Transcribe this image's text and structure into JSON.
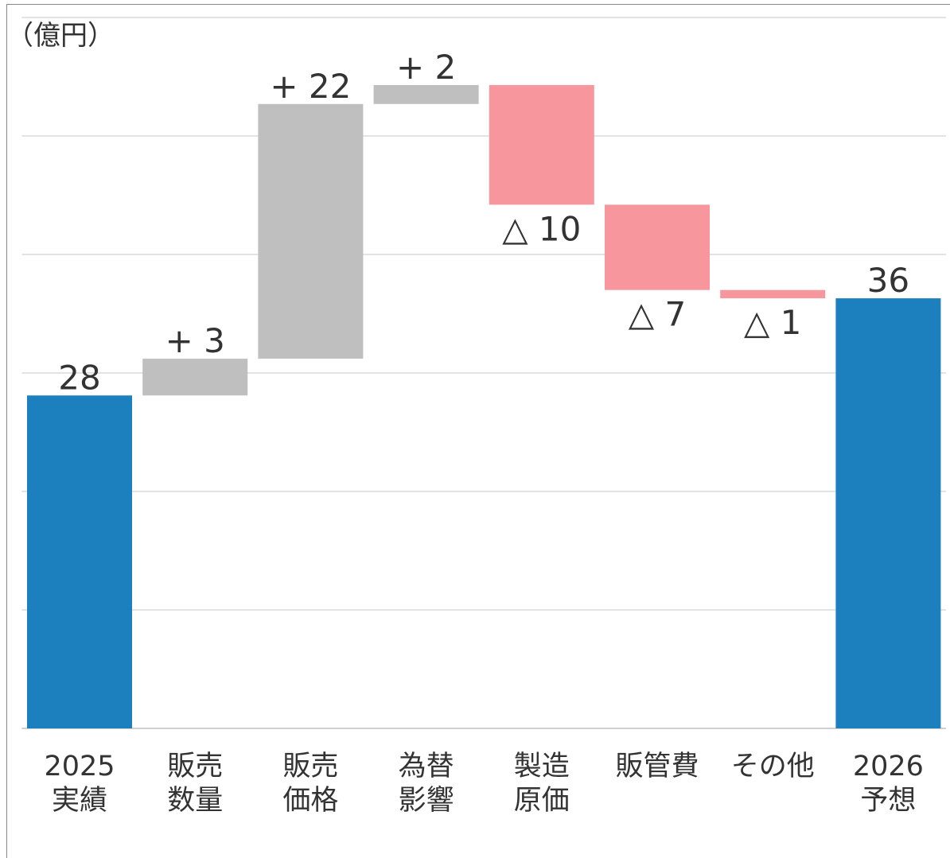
{
  "chart_data": {
    "type": "waterfall",
    "y_label": "（億円）",
    "categories": [
      [
        "2025",
        "実績"
      ],
      [
        "販売",
        "数量"
      ],
      [
        "販売",
        "価格"
      ],
      [
        "為替",
        "影響"
      ],
      [
        "製造",
        "原価"
      ],
      [
        "販管費"
      ],
      [
        "その他"
      ],
      [
        "2026",
        "予想"
      ]
    ],
    "values": [
      28.1,
      3.1,
      21.5,
      1.6,
      -10.1,
      -7.2,
      -0.7,
      36.3
    ],
    "value_labels": [
      "28",
      "+ 3",
      "+ 22",
      "+ 2",
      "△ 10",
      "△ 7",
      "△ 1",
      "36"
    ],
    "is_total": [
      true,
      false,
      false,
      false,
      false,
      false,
      false,
      true
    ],
    "total_color": "#1c7fbe",
    "increase_color": "#bfbfbf",
    "decrease_color": "#f8969e",
    "ylim": [
      0,
      60
    ],
    "yticks": [
      0,
      10,
      20,
      30,
      40,
      50,
      60
    ],
    "grid": true
  }
}
